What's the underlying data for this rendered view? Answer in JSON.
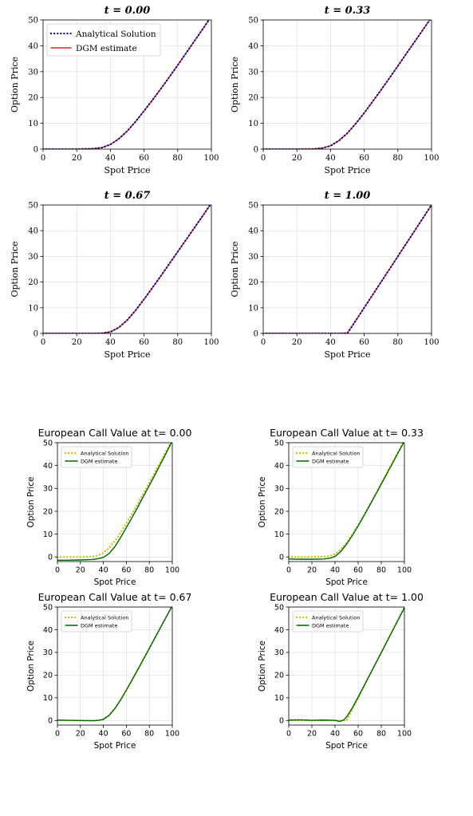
{
  "chart_data": [
    {
      "type": "line",
      "title": "t = 0.00",
      "xlabel": "Spot Price",
      "ylabel": "Option Price",
      "xlim": [
        0,
        100
      ],
      "ylim": [
        0,
        50
      ],
      "xticks": [
        0,
        20,
        40,
        60,
        80,
        100
      ],
      "yticks": [
        0,
        10,
        20,
        30,
        40,
        50
      ],
      "grid": true,
      "legend": "top-left",
      "x": [
        0,
        10,
        20,
        30,
        35,
        40,
        45,
        50,
        55,
        60,
        65,
        70,
        75,
        80,
        85,
        90,
        95,
        100
      ],
      "series": [
        {
          "name": "Analytical Solution",
          "color": "#00008b",
          "style": "dotted",
          "values": [
            0,
            0,
            0,
            0.2,
            0.6,
            1.8,
            4.0,
            7.0,
            10.7,
            14.8,
            19.0,
            23.4,
            27.9,
            32.5,
            37.2,
            41.9,
            46.6,
            51.4
          ]
        },
        {
          "name": "DGM estimate",
          "color": "#d62728",
          "style": "solid",
          "values": [
            0,
            0,
            0,
            0.2,
            0.6,
            1.8,
            4.0,
            7.0,
            10.7,
            14.8,
            19.0,
            23.4,
            27.9,
            32.5,
            37.2,
            41.9,
            46.6,
            51.4
          ]
        }
      ]
    },
    {
      "type": "line",
      "title": "t = 0.33",
      "xlabel": "Spot Price",
      "ylabel": "Option Price",
      "xlim": [
        0,
        100
      ],
      "ylim": [
        0,
        50
      ],
      "xticks": [
        0,
        20,
        40,
        60,
        80,
        100
      ],
      "yticks": [
        0,
        10,
        20,
        30,
        40,
        50
      ],
      "grid": true,
      "x": [
        0,
        10,
        20,
        30,
        35,
        40,
        45,
        50,
        55,
        60,
        65,
        70,
        75,
        80,
        85,
        90,
        95,
        100
      ],
      "series": [
        {
          "name": "Analytical Solution",
          "color": "#00008b",
          "style": "dotted",
          "values": [
            0,
            0,
            0,
            0.1,
            0.4,
            1.3,
            3.3,
            6.2,
            9.9,
            14.0,
            18.4,
            22.9,
            27.5,
            32.2,
            36.9,
            41.6,
            46.3,
            51.0
          ]
        },
        {
          "name": "DGM estimate",
          "color": "#d62728",
          "style": "solid",
          "values": [
            0,
            0,
            0,
            0.1,
            0.4,
            1.3,
            3.3,
            6.2,
            9.9,
            14.0,
            18.4,
            22.9,
            27.5,
            32.2,
            36.9,
            41.6,
            46.3,
            51.0
          ]
        }
      ]
    },
    {
      "type": "line",
      "title": "t = 0.67",
      "xlabel": "Spot Price",
      "ylabel": "Option Price",
      "xlim": [
        0,
        100
      ],
      "ylim": [
        0,
        50
      ],
      "xticks": [
        0,
        20,
        40,
        60,
        80,
        100
      ],
      "yticks": [
        0,
        10,
        20,
        30,
        40,
        50
      ],
      "grid": true,
      "x": [
        0,
        10,
        20,
        30,
        35,
        40,
        45,
        50,
        55,
        60,
        65,
        70,
        75,
        80,
        85,
        90,
        95,
        100
      ],
      "series": [
        {
          "name": "Analytical Solution",
          "color": "#00008b",
          "style": "dotted",
          "values": [
            0,
            0,
            0,
            0,
            0.1,
            0.6,
            2.3,
            5.2,
            9.0,
            13.3,
            17.8,
            22.4,
            27.1,
            31.8,
            36.5,
            41.2,
            45.9,
            50.7
          ]
        },
        {
          "name": "DGM estimate",
          "color": "#d62728",
          "style": "solid",
          "values": [
            0,
            0,
            0,
            0,
            0.1,
            0.6,
            2.3,
            5.2,
            9.0,
            13.3,
            17.8,
            22.4,
            27.1,
            31.8,
            36.5,
            41.2,
            45.9,
            50.7
          ]
        }
      ]
    },
    {
      "type": "line",
      "title": "t = 1.00",
      "xlabel": "Spot Price",
      "ylabel": "Option Price",
      "xlim": [
        0,
        100
      ],
      "ylim": [
        0,
        50
      ],
      "xticks": [
        0,
        20,
        40,
        60,
        80,
        100
      ],
      "yticks": [
        0,
        10,
        20,
        30,
        40,
        50
      ],
      "grid": true,
      "x": [
        0,
        10,
        20,
        30,
        40,
        45,
        50,
        55,
        60,
        70,
        80,
        90,
        100
      ],
      "series": [
        {
          "name": "Analytical Solution",
          "color": "#00008b",
          "style": "dotted",
          "values": [
            0,
            0,
            0,
            0,
            0,
            0,
            0,
            5,
            10,
            20,
            30,
            40,
            50
          ]
        },
        {
          "name": "DGM estimate",
          "color": "#d62728",
          "style": "solid",
          "values": [
            0,
            0,
            0,
            0,
            0,
            0,
            0.2,
            5,
            10,
            20,
            30,
            40,
            50
          ]
        }
      ]
    },
    {
      "type": "line",
      "title": "European Call Value at t= 0.00",
      "xlabel": "Spot Price",
      "ylabel": "Option Price",
      "xlim": [
        0,
        100
      ],
      "ylim": [
        -2,
        50
      ],
      "xticks": [
        0,
        20,
        40,
        60,
        80,
        100
      ],
      "yticks": [
        0,
        10,
        20,
        30,
        40,
        50
      ],
      "grid": true,
      "legend": "top-left",
      "x": [
        0,
        10,
        20,
        30,
        35,
        40,
        45,
        50,
        55,
        60,
        65,
        70,
        75,
        80,
        85,
        90,
        95,
        100
      ],
      "series": [
        {
          "name": "Analytical Solution",
          "color": "#bfbf00",
          "style": "dotted",
          "values": [
            0,
            0,
            0,
            0.2,
            0.6,
            1.8,
            4.0,
            7.0,
            10.7,
            14.8,
            19.0,
            23.4,
            27.9,
            32.5,
            37.2,
            41.9,
            46.6,
            51.4
          ]
        },
        {
          "name": "DGM estimate",
          "color": "#006400",
          "style": "solid",
          "values": [
            -1.4,
            -1.4,
            -1.3,
            -1.1,
            -0.8,
            -0.2,
            1.5,
            4.5,
            8.5,
            12.9,
            17.3,
            21.9,
            26.6,
            31.3,
            36.0,
            40.9,
            45.8,
            50.8
          ]
        }
      ]
    },
    {
      "type": "line",
      "title": "European Call Value at t= 0.33",
      "xlabel": "Spot Price",
      "ylabel": "Option Price",
      "xlim": [
        0,
        100
      ],
      "ylim": [
        -2,
        50
      ],
      "xticks": [
        0,
        20,
        40,
        60,
        80,
        100
      ],
      "yticks": [
        0,
        10,
        20,
        30,
        40,
        50
      ],
      "grid": true,
      "legend": "top-left",
      "x": [
        0,
        10,
        20,
        30,
        35,
        40,
        45,
        50,
        55,
        60,
        65,
        70,
        75,
        80,
        85,
        90,
        95,
        100
      ],
      "series": [
        {
          "name": "Analytical Solution",
          "color": "#bfbf00",
          "style": "dotted",
          "values": [
            0,
            0,
            0,
            0.1,
            0.4,
            1.3,
            3.3,
            6.2,
            9.9,
            14.0,
            18.4,
            22.9,
            27.5,
            32.2,
            36.9,
            41.6,
            46.3,
            51.0
          ]
        },
        {
          "name": "DGM estimate",
          "color": "#006400",
          "style": "solid",
          "values": [
            -0.9,
            -1.0,
            -1.0,
            -0.9,
            -0.6,
            0.2,
            2.4,
            5.6,
            9.4,
            13.6,
            18.0,
            22.6,
            27.2,
            31.9,
            36.6,
            41.3,
            46.0,
            50.6
          ]
        }
      ]
    },
    {
      "type": "line",
      "title": "European Call Value at t= 0.67",
      "xlabel": "Spot Price",
      "ylabel": "Option Price",
      "xlim": [
        0,
        100
      ],
      "ylim": [
        -2,
        50
      ],
      "xticks": [
        0,
        20,
        40,
        60,
        80,
        100
      ],
      "yticks": [
        0,
        10,
        20,
        30,
        40,
        50
      ],
      "grid": true,
      "legend": "top-left",
      "x": [
        0,
        10,
        20,
        30,
        35,
        40,
        45,
        50,
        55,
        60,
        65,
        70,
        75,
        80,
        85,
        90,
        95,
        100
      ],
      "series": [
        {
          "name": "Analytical Solution",
          "color": "#bfbf00",
          "style": "dotted",
          "values": [
            0,
            0,
            0,
            0,
            0.1,
            0.6,
            2.3,
            5.2,
            9.0,
            13.3,
            17.8,
            22.4,
            27.1,
            31.8,
            36.5,
            41.2,
            45.9,
            50.7
          ]
        },
        {
          "name": "DGM estimate",
          "color": "#006400",
          "style": "solid",
          "values": [
            0.2,
            0.1,
            0.0,
            -0.1,
            0.0,
            0.5,
            2.3,
            5.3,
            9.1,
            13.4,
            17.9,
            22.5,
            27.1,
            31.8,
            36.5,
            41.2,
            45.9,
            50.5
          ]
        }
      ]
    },
    {
      "type": "line",
      "title": "European Call Value at t= 1.00",
      "xlabel": "Spot Price",
      "ylabel": "Option Price",
      "xlim": [
        0,
        100
      ],
      "ylim": [
        -2,
        50
      ],
      "xticks": [
        0,
        20,
        40,
        60,
        80,
        100
      ],
      "yticks": [
        0,
        10,
        20,
        30,
        40,
        50
      ],
      "grid": true,
      "legend": "top-left",
      "x": [
        0,
        10,
        20,
        30,
        40,
        44,
        47,
        50,
        55,
        60,
        70,
        80,
        90,
        100
      ],
      "series": [
        {
          "name": "Analytical Solution",
          "color": "#bfbf00",
          "style": "dotted",
          "values": [
            0,
            0,
            0,
            0,
            0,
            0,
            0,
            0,
            5,
            10,
            20,
            30,
            40,
            50
          ]
        },
        {
          "name": "DGM estimate",
          "color": "#006400",
          "style": "solid",
          "values": [
            0.2,
            0.3,
            0.1,
            0.2,
            0.1,
            -0.4,
            0.1,
            1.5,
            5.6,
            10.3,
            20.1,
            29.9,
            39.8,
            49.6
          ]
        }
      ]
    }
  ]
}
